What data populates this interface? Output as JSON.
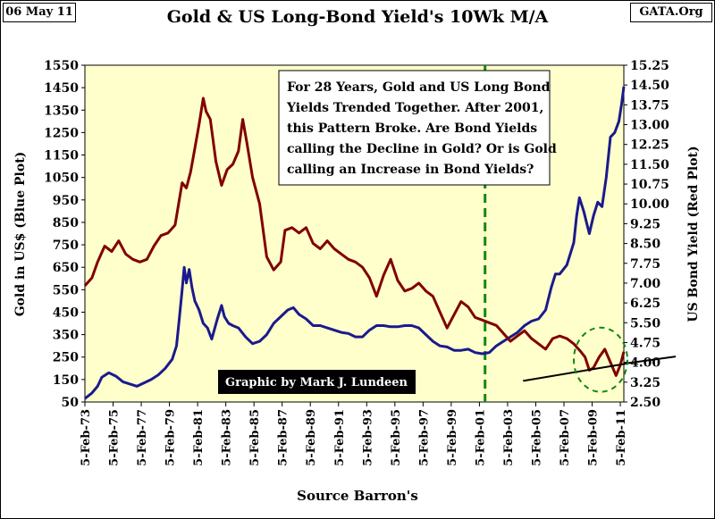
{
  "header": {
    "date": "06 May 11",
    "source_tag": "GATA.Org",
    "title": "Gold & US Long-Bond Yield's 10Wk M/A"
  },
  "annotation": {
    "lines": [
      "For 28 Years, Gold and US Long Bond",
      "Yields Trended Together.  After 2001,",
      "this Pattern  Broke.  Are Bond Yields",
      "calling the Decline in Gold?  Or is Gold",
      "calling an Increase in Bond Yields?"
    ]
  },
  "credit": "Graphic by Mark J. Lundeen",
  "footer": "Source Barron's",
  "colors": {
    "plot_bg": "#ffffcc",
    "gold": "#1a1a8c",
    "yield": "#800000",
    "marker": "#118811",
    "trend": "#000000"
  },
  "chart_data": {
    "type": "line",
    "title": "Gold & US Long-Bond Yield's 10Wk M/A",
    "xlabel": "Source Barron's",
    "ylabel_left": "Gold in US$ (Blue Plot)",
    "ylabel_right": "US Bond Yield (Red Plot)",
    "ylim_left": [
      50,
      1550
    ],
    "ylim_right": [
      2.5,
      15.25
    ],
    "yticks_left": [
      "50",
      "150",
      "250",
      "350",
      "450",
      "550",
      "650",
      "750",
      "850",
      "950",
      "1050",
      "1150",
      "1250",
      "1350",
      "1450",
      "1550"
    ],
    "yticks_right": [
      "2.50",
      "3.25",
      "4.00",
      "4.75",
      "5.50",
      "6.25",
      "7.00",
      "7.75",
      "8.50",
      "9.25",
      "10.00",
      "10.75",
      "11.50",
      "12.25",
      "13.00",
      "13.75",
      "14.50",
      "15.25"
    ],
    "x_range": [
      1973.1,
      2011.35
    ],
    "x_tick_years": [
      1973,
      1975,
      1977,
      1979,
      1981,
      1983,
      1985,
      1987,
      1989,
      1991,
      1993,
      1995,
      1997,
      1999,
      2001,
      2003,
      2005,
      2007,
      2009,
      2011
    ],
    "x_tick_labels": [
      "5-Feb-73",
      "5-Feb-75",
      "5-Feb-77",
      "5-Feb-79",
      "5-Feb-81",
      "5-Feb-83",
      "5-Feb-85",
      "5-Feb-87",
      "5-Feb-89",
      "5-Feb-91",
      "5-Feb-93",
      "5-Feb-95",
      "5-Feb-97",
      "5-Feb-99",
      "5-Feb-01",
      "5-Feb-03",
      "5-Feb-05",
      "5-Feb-07",
      "5-Feb-09",
      "5-Feb-11"
    ],
    "grid": false,
    "marker_line_year": 2001.5,
    "series": [
      {
        "axis": "left",
        "x": [
          1973.1,
          1973.6,
          1974.0,
          1974.3,
          1974.8,
          1975.3,
          1975.8,
          1976.3,
          1976.8,
          1977.3,
          1977.8,
          1978.3,
          1978.8,
          1979.3,
          1979.6,
          1979.8,
          1980.0,
          1980.15,
          1980.3,
          1980.5,
          1980.7,
          1980.9,
          1981.2,
          1981.5,
          1981.8,
          1982.1,
          1982.5,
          1982.8,
          1983.0,
          1983.3,
          1983.6,
          1984.0,
          1984.5,
          1985.0,
          1985.5,
          1986.0,
          1986.5,
          1987.0,
          1987.5,
          1987.9,
          1988.3,
          1988.8,
          1989.3,
          1989.8,
          1990.3,
          1990.8,
          1991.3,
          1991.8,
          1992.3,
          1992.8,
          1993.3,
          1993.8,
          1994.3,
          1994.8,
          1995.3,
          1995.8,
          1996.3,
          1996.8,
          1997.3,
          1997.8,
          1998.3,
          1998.8,
          1999.3,
          1999.8,
          2000.3,
          2000.8,
          2001.3,
          2001.8,
          2002.3,
          2002.8,
          2003.3,
          2003.8,
          2004.3,
          2004.8,
          2005.3,
          2005.8,
          2006.2,
          2006.5,
          2006.8,
          2007.3,
          2007.8,
          2008.0,
          2008.2,
          2008.5,
          2008.7,
          2008.9,
          2009.2,
          2009.5,
          2009.8,
          2010.1,
          2010.4,
          2010.7,
          2011.0,
          2011.2,
          2011.35
        ],
        "values": [
          65,
          90,
          120,
          160,
          180,
          165,
          140,
          130,
          120,
          135,
          150,
          170,
          200,
          240,
          300,
          420,
          550,
          650,
          580,
          640,
          560,
          500,
          460,
          400,
          380,
          330,
          420,
          480,
          430,
          400,
          390,
          380,
          340,
          310,
          320,
          350,
          400,
          430,
          460,
          470,
          440,
          420,
          390,
          390,
          380,
          370,
          360,
          355,
          340,
          340,
          370,
          390,
          390,
          385,
          385,
          390,
          390,
          380,
          350,
          320,
          300,
          295,
          280,
          280,
          285,
          270,
          265,
          270,
          300,
          320,
          340,
          360,
          390,
          410,
          420,
          460,
          560,
          620,
          620,
          660,
          760,
          880,
          960,
          900,
          850,
          800,
          880,
          940,
          920,
          1050,
          1230,
          1250,
          1300,
          1380,
          1455
        ]
      },
      {
        "axis": "right",
        "x": [
          1973.1,
          1973.6,
          1974.0,
          1974.5,
          1975.0,
          1975.5,
          1976.0,
          1976.5,
          1977.0,
          1977.5,
          1978.0,
          1978.5,
          1979.0,
          1979.5,
          1980.0,
          1980.3,
          1980.6,
          1980.9,
          1981.2,
          1981.5,
          1981.7,
          1982.0,
          1982.4,
          1982.8,
          1983.2,
          1983.6,
          1984.0,
          1984.3,
          1984.6,
          1985.0,
          1985.5,
          1986.0,
          1986.5,
          1987.0,
          1987.3,
          1987.8,
          1988.3,
          1988.8,
          1989.3,
          1989.8,
          1990.3,
          1990.8,
          1991.3,
          1991.8,
          1992.3,
          1992.8,
          1993.3,
          1993.8,
          1994.3,
          1994.8,
          1995.3,
          1995.8,
          1996.3,
          1996.8,
          1997.3,
          1997.8,
          1998.3,
          1998.8,
          1999.3,
          1999.8,
          2000.3,
          2000.8,
          2001.3,
          2001.8,
          2002.3,
          2002.8,
          2003.3,
          2003.8,
          2004.3,
          2004.8,
          2005.3,
          2005.8,
          2006.3,
          2006.8,
          2007.3,
          2007.8,
          2008.3,
          2008.6,
          2008.9,
          2009.2,
          2009.6,
          2010.0,
          2010.4,
          2010.8,
          2011.1,
          2011.35
        ],
        "values": [
          6.9,
          7.2,
          7.8,
          8.4,
          8.2,
          8.6,
          8.1,
          7.9,
          7.8,
          7.9,
          8.4,
          8.8,
          8.9,
          9.2,
          10.8,
          10.6,
          11.2,
          12.1,
          13.0,
          14.0,
          13.5,
          13.2,
          11.6,
          10.7,
          11.3,
          11.5,
          12.0,
          13.2,
          12.3,
          11.0,
          10.0,
          8.0,
          7.5,
          7.8,
          9.0,
          9.1,
          8.9,
          9.1,
          8.5,
          8.3,
          8.6,
          8.3,
          8.1,
          7.9,
          7.8,
          7.6,
          7.2,
          6.5,
          7.3,
          7.9,
          7.1,
          6.7,
          6.8,
          7.0,
          6.7,
          6.5,
          5.9,
          5.3,
          5.8,
          6.3,
          6.1,
          5.7,
          5.6,
          5.5,
          5.4,
          5.1,
          4.8,
          5.0,
          5.2,
          4.9,
          4.7,
          4.5,
          4.9,
          5.0,
          4.9,
          4.7,
          4.4,
          4.2,
          3.7,
          3.8,
          4.2,
          4.5,
          4.0,
          3.5,
          3.9,
          4.4
        ]
      }
    ],
    "trendline_right": {
      "x": [
        2004.2,
        2011.5
      ],
      "values": [
        3.3,
        3.95
      ]
    }
  }
}
